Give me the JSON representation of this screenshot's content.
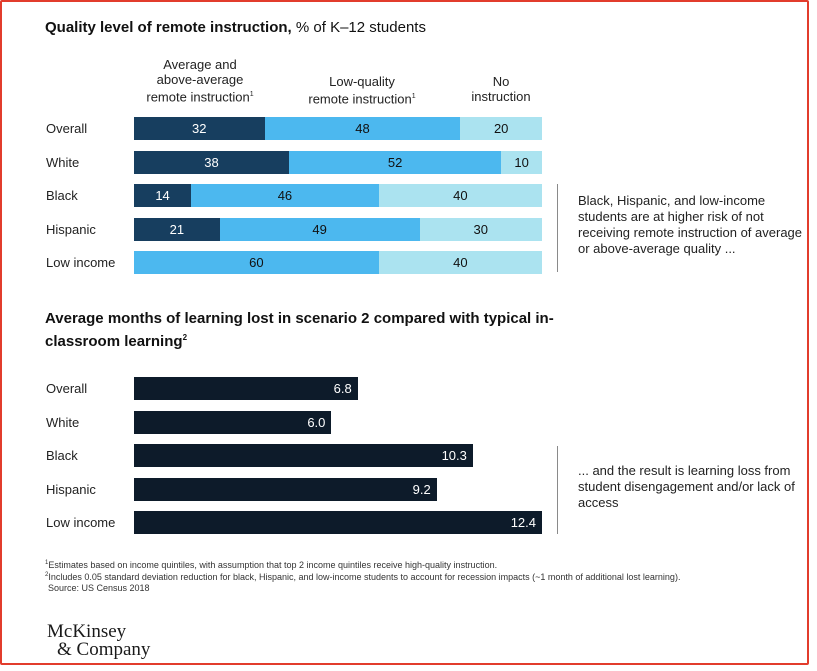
{
  "colors": {
    "frame": "#e23c2c",
    "average_above": "#173e5f",
    "low_quality": "#4cb8ef",
    "no_instruction": "#abe3f0",
    "months_bar": "#0d1b2a"
  },
  "chart1": {
    "title_bold": "Quality level of remote instruction,",
    "title_rest": " % of K–12 students",
    "col_heads": {
      "avg": [
        "Average and",
        "above-average",
        "remote instruction",
        "1"
      ],
      "low": [
        "Low-quality",
        "remote instruction",
        "1"
      ],
      "none": [
        "No",
        "instruction"
      ]
    },
    "note": "Black, Hispanic, and low-income students are at higher risk of not receiving remote instruction of average or above-average quality ..."
  },
  "chart2": {
    "title": "Average months of learning lost in scenario 2 compared with typical in-classroom learning",
    "title_sup": "2",
    "note": "... and the result is learning loss from student disengagement and/or lack of access"
  },
  "chart_data": [
    {
      "type": "bar",
      "stacked": true,
      "orientation": "horizontal",
      "title": "Quality level of remote instruction, % of K–12 students",
      "categories": [
        "Overall",
        "White",
        "Black",
        "Hispanic",
        "Low income"
      ],
      "series": [
        {
          "name": "Average and above-average remote instruction",
          "values": [
            32,
            38,
            14,
            21,
            0
          ],
          "color": "#173e5f"
        },
        {
          "name": "Low-quality remote instruction",
          "values": [
            48,
            52,
            46,
            49,
            60
          ],
          "color": "#4cb8ef"
        },
        {
          "name": "No instruction",
          "values": [
            20,
            10,
            40,
            30,
            40
          ],
          "color": "#abe3f0"
        }
      ],
      "xlim": [
        0,
        100
      ]
    },
    {
      "type": "bar",
      "orientation": "horizontal",
      "title": "Average months of learning lost in scenario 2 compared with typical in-classroom learning",
      "categories": [
        "Overall",
        "White",
        "Black",
        "Hispanic",
        "Low income"
      ],
      "values": [
        6.8,
        6.0,
        10.3,
        9.2,
        12.4
      ],
      "value_labels": [
        "6.8",
        "6.0",
        "10.3",
        "9.2",
        "12.4"
      ],
      "xlim": [
        0,
        12.4
      ]
    }
  ],
  "footnotes": [
    "Estimates based on income quintiles, with assumption that top 2 income quintiles receive high-quality instruction.",
    "Includes 0.05 standard deviation reduction for black, Hispanic, and low-income students to account for recession impacts (~1 month of additional lost learning).",
    "Source: US Census 2018"
  ],
  "footnote_marks": [
    "1",
    "2"
  ],
  "brand": {
    "line1": "McKinsey",
    "line2": "& Company"
  }
}
